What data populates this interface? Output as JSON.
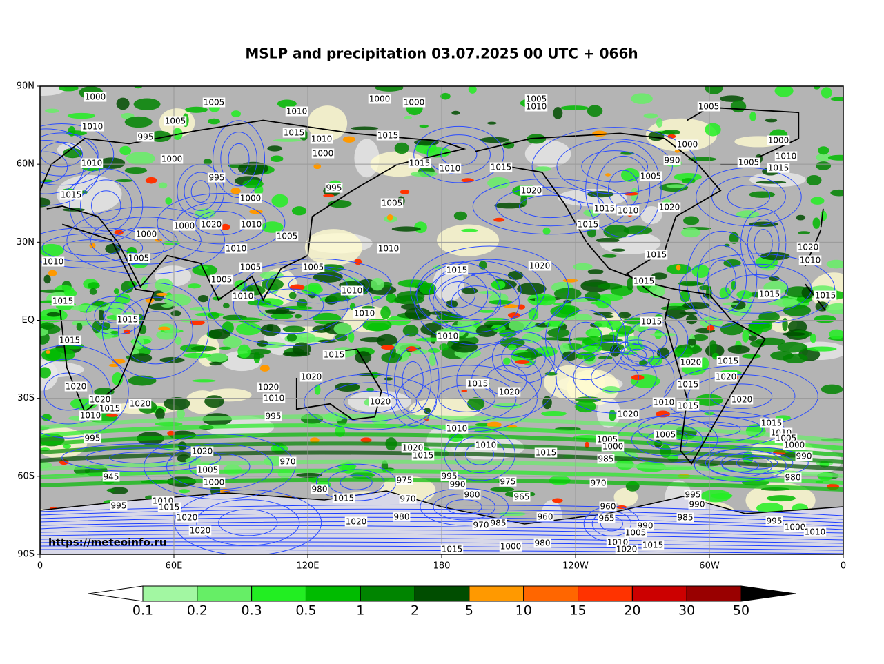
{
  "title": "MSLP and precipitation 03.07.2025 00 UTC + 066h",
  "lat_labels": [
    "90N",
    "60N",
    "30N",
    "EQ",
    "30S",
    "60S",
    "90S"
  ],
  "lon_labels": [
    "0",
    "60E",
    "120E",
    "180",
    "120W",
    "60W",
    "0"
  ],
  "watermark": "https://meteoinfo.ru",
  "colorbar": {
    "levels": [
      0.1,
      0.2,
      0.3,
      0.5,
      1,
      2,
      5,
      10,
      15,
      20,
      30,
      50
    ],
    "colors": [
      "#a2f7a2",
      "#66ee66",
      "#22ee22",
      "#00bb00",
      "#008400",
      "#004d00",
      "#ff9900",
      "#ff6600",
      "#ff3300",
      "#cc0000",
      "#990000"
    ],
    "under_color": "#ffffff",
    "over_color": "#000000"
  },
  "isobar_labels": [
    1000,
    1005,
    1010,
    1000,
    1000,
    1005,
    1010,
    1005,
    1010,
    995,
    1005,
    1015,
    1010,
    1015,
    1000,
    1000,
    1010,
    995,
    1015,
    1010,
    1015,
    1020,
    1000,
    990,
    1000,
    1010,
    1005,
    1015,
    1005,
    1015,
    995,
    1005,
    1000,
    1015,
    1010,
    1020,
    1015,
    1010,
    1020,
    1000,
    1000,
    1005,
    1010,
    1010,
    1005,
    1005,
    1010,
    1005,
    1015,
    1020,
    1020,
    1010,
    1015,
    1015,
    1010,
    1010,
    1005,
    1015,
    1015,
    1015,
    1015,
    1010,
    1015,
    1015,
    1010,
    1020,
    1015,
    1015,
    1020,
    1020,
    1020,
    1015,
    1020,
    1020,
    1015,
    1015,
    1010,
    1020,
    1020,
    1020,
    1020,
    1015,
    1010,
    1015,
    1010,
    1020,
    995,
    1010,
    1015,
    1010,
    995,
    1005,
    1005,
    1005,
    1000,
    1000,
    1010,
    1020,
    1020,
    1015,
    1015,
    990,
    985,
    970,
    1005,
    975,
    995,
    990,
    975,
    980,
    945,
    1000,
    970,
    980,
    1015,
    980,
    965,
    970,
    995,
    990,
    960,
    995,
    1010,
    1015,
    1020,
    965,
    985,
    960,
    980,
    1020,
    995,
    1000,
    1010,
    1020,
    990,
    1005,
    970,
    985,
    1010,
    1015,
    1020,
    980,
    1000,
    1015
  ]
}
